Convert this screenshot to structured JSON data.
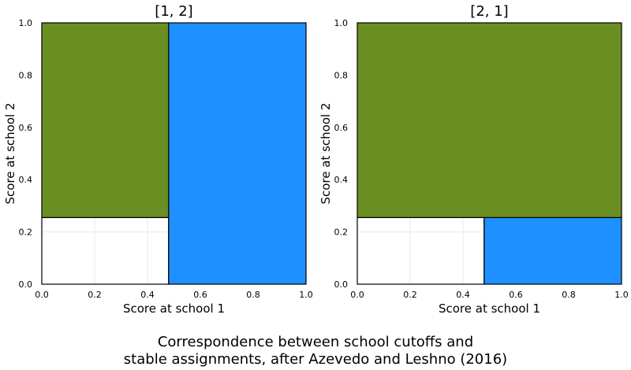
{
  "caption": {
    "line1": "Correspondence between school cutoffs and",
    "line2": "stable assignments, after Azevedo and Leshno (2016)"
  },
  "colors": {
    "green": "#6b8e23",
    "blue": "#1e90ff",
    "white": "#ffffff",
    "grid": "#e8e8e8"
  },
  "chart_data": [
    {
      "type": "area",
      "title": "[1, 2]",
      "xlabel": "Score at school 1",
      "ylabel": "Score at school 2",
      "xlim": [
        0,
        1
      ],
      "ylim": [
        0,
        1
      ],
      "xticks": [
        "0.0",
        "0.2",
        "0.4",
        "0.6",
        "0.8",
        "1.0"
      ],
      "yticks": [
        "0.0",
        "0.2",
        "0.4",
        "0.6",
        "0.8",
        "1.0"
      ],
      "grid": true,
      "regions": [
        {
          "x0": 0.0,
          "x1": 0.48,
          "y0": 0.0,
          "y1": 0.255,
          "color": "#ffffff"
        },
        {
          "x0": 0.0,
          "x1": 0.48,
          "y0": 0.255,
          "y1": 1.0,
          "color": "#6b8e23"
        },
        {
          "x0": 0.48,
          "x1": 1.0,
          "y0": 0.0,
          "y1": 1.0,
          "color": "#1e90ff"
        }
      ]
    },
    {
      "type": "area",
      "title": "[2, 1]",
      "xlabel": "Score at school 1",
      "ylabel": "Score at school 2",
      "xlim": [
        0,
        1
      ],
      "ylim": [
        0,
        1
      ],
      "xticks": [
        "0.0",
        "0.2",
        "0.4",
        "0.6",
        "0.8",
        "1.0"
      ],
      "yticks": [
        "0.0",
        "0.2",
        "0.4",
        "0.6",
        "0.8",
        "1.0"
      ],
      "grid": true,
      "regions": [
        {
          "x0": 0.0,
          "x1": 0.48,
          "y0": 0.0,
          "y1": 0.255,
          "color": "#ffffff"
        },
        {
          "x0": 0.48,
          "x1": 1.0,
          "y0": 0.0,
          "y1": 0.255,
          "color": "#1e90ff"
        },
        {
          "x0": 0.0,
          "x1": 1.0,
          "y0": 0.255,
          "y1": 1.0,
          "color": "#6b8e23"
        }
      ]
    }
  ]
}
